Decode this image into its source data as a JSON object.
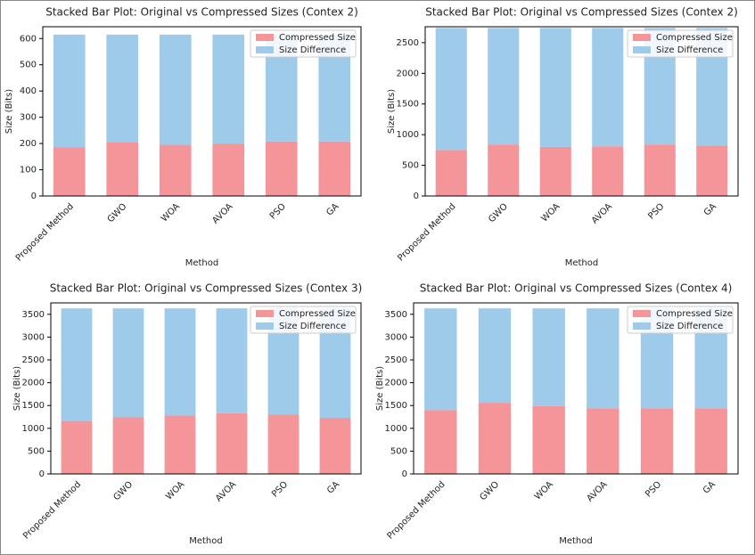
{
  "chart_data": [
    {
      "type": "stacked_bar",
      "title": "Stacked Bar Plot: Original vs Compressed Sizes (Contex 2)",
      "x_label": "Method",
      "y_label": "Size (Bits)",
      "categories": [
        "Proposed Method",
        "GWO",
        "WOA",
        "AVOA",
        "PSO",
        "GA"
      ],
      "series": [
        {
          "name": "Compressed Size",
          "color": "#f4959a",
          "values": [
            185,
            205,
            195,
            200,
            208,
            208
          ]
        },
        {
          "name": "Size Difference",
          "color": "#9ecbea",
          "values": [
            430,
            410,
            420,
            415,
            407,
            407
          ]
        }
      ],
      "ylim": [
        0,
        645
      ],
      "yticks": [
        0,
        100,
        200,
        300,
        400,
        500,
        600
      ],
      "legend": "upper right"
    },
    {
      "type": "stacked_bar",
      "title": "Stacked Bar Plot: Original vs Compressed Sizes (Contex 2)",
      "x_label": "Method",
      "y_label": "Size (Bits)",
      "categories": [
        "Proposed Method",
        "GWO",
        "WOA",
        "AVOA",
        "PSO",
        "GA"
      ],
      "series": [
        {
          "name": "Compressed Size",
          "color": "#f4959a",
          "values": [
            750,
            840,
            800,
            810,
            840,
            820
          ]
        },
        {
          "name": "Size Difference",
          "color": "#9ecbea",
          "values": [
            1990,
            1900,
            1940,
            1930,
            1900,
            1920
          ]
        }
      ],
      "ylim": [
        0,
        2760
      ],
      "yticks": [
        0,
        500,
        1000,
        1500,
        2000,
        2500
      ],
      "legend": "upper right"
    },
    {
      "type": "stacked_bar",
      "title": "Stacked Bar Plot: Original vs Compressed Sizes (Contex 3)",
      "x_label": "Method",
      "y_label": "Size (Bits)",
      "categories": [
        "Proposed Method",
        "GWO",
        "WOA",
        "AVOA",
        "PSO",
        "GA"
      ],
      "series": [
        {
          "name": "Compressed Size",
          "color": "#f4959a",
          "values": [
            1160,
            1240,
            1280,
            1330,
            1300,
            1230
          ]
        },
        {
          "name": "Size Difference",
          "color": "#9ecbea",
          "values": [
            2470,
            2390,
            2350,
            2300,
            2330,
            2400
          ]
        }
      ],
      "ylim": [
        0,
        3750
      ],
      "yticks": [
        0,
        500,
        1000,
        1500,
        2000,
        2500,
        3000,
        3500
      ],
      "legend": "upper right"
    },
    {
      "type": "stacked_bar",
      "title": "Stacked Bar Plot: Original vs Compressed Sizes (Contex 4)",
      "x_label": "Method",
      "y_label": "Size (Bits)",
      "categories": [
        "Proposed Method",
        "GWO",
        "WOA",
        "AVOA",
        "PSO",
        "GA"
      ],
      "series": [
        {
          "name": "Compressed Size",
          "color": "#f4959a",
          "values": [
            1400,
            1560,
            1490,
            1440,
            1440,
            1440
          ]
        },
        {
          "name": "Size Difference",
          "color": "#9ecbea",
          "values": [
            2230,
            2070,
            2140,
            2190,
            2190,
            2190
          ]
        }
      ],
      "ylim": [
        0,
        3750
      ],
      "yticks": [
        0,
        500,
        1000,
        1500,
        2000,
        2500,
        3000,
        3500
      ],
      "legend": "upper right"
    }
  ]
}
